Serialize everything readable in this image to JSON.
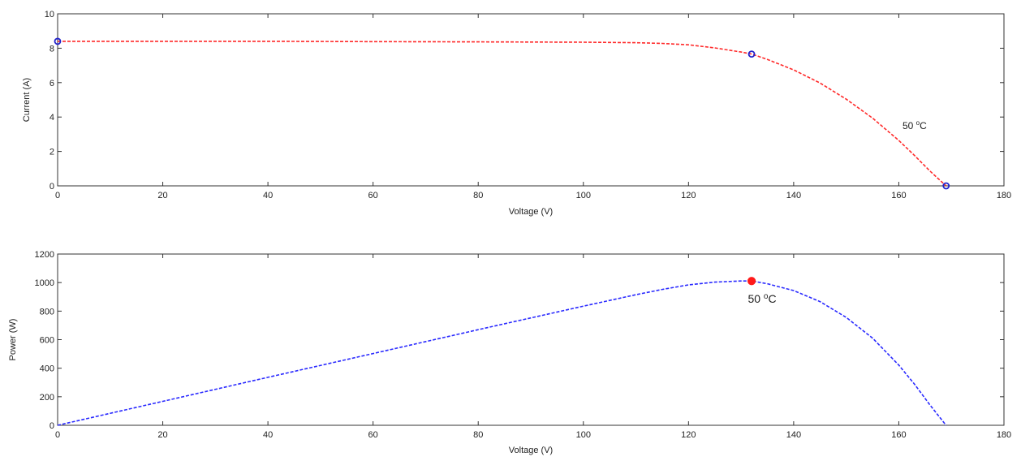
{
  "chart_data": [
    {
      "type": "line",
      "xlabel": "Voltage (V)",
      "ylabel": "Current (A)",
      "xlim": [
        0,
        180
      ],
      "ylim": [
        0,
        10
      ],
      "xticks": [
        "0",
        "20",
        "40",
        "60",
        "80",
        "100",
        "120",
        "140",
        "160",
        "180"
      ],
      "yticks": [
        "0",
        "2",
        "4",
        "6",
        "8",
        "10"
      ],
      "grid": false,
      "line_color": "#ff2a2a",
      "marker_color": "#2222cc",
      "series": [
        {
          "x": [
            0,
            20,
            40,
            60,
            80,
            100,
            110,
            115,
            120,
            125,
            130,
            132,
            135,
            140,
            145,
            150,
            155,
            160,
            163,
            166,
            169
          ],
          "y": [
            8.4,
            8.4,
            8.4,
            8.38,
            8.37,
            8.35,
            8.32,
            8.28,
            8.2,
            8.02,
            7.78,
            7.66,
            7.35,
            6.74,
            5.98,
            5.04,
            3.94,
            2.64,
            1.76,
            0.84,
            0
          ]
        }
      ],
      "markers": [
        {
          "x": 0,
          "y": 8.4
        },
        {
          "x": 132,
          "y": 7.66
        },
        {
          "x": 169,
          "y": 0
        }
      ],
      "annotation": {
        "text": "50 ",
        "sup": "o",
        "suffix": "C",
        "x": 163,
        "y": 3.3
      }
    },
    {
      "type": "line",
      "xlabel": "Voltage (V)",
      "ylabel": "Power (W)",
      "xlim": [
        0,
        180
      ],
      "ylim": [
        0,
        1200
      ],
      "xticks": [
        "0",
        "20",
        "40",
        "60",
        "80",
        "100",
        "120",
        "140",
        "160",
        "180"
      ],
      "yticks": [
        "0",
        "200",
        "400",
        "600",
        "800",
        "1000",
        "1200"
      ],
      "grid": false,
      "line_color": "#2a2aff",
      "marker_color": "#ff1a1a",
      "series": [
        {
          "x": [
            0,
            20,
            40,
            60,
            80,
            100,
            110,
            115,
            120,
            125,
            130,
            132,
            135,
            140,
            145,
            150,
            155,
            160,
            163,
            166,
            169
          ],
          "y": [
            0,
            168,
            336,
            503,
            670,
            835,
            915,
            952,
            984,
            1003,
            1011,
            1011,
            992,
            944,
            867,
            756,
            611,
            422,
            287,
            139,
            0
          ]
        }
      ],
      "markers": [
        {
          "x": 132,
          "y": 1011
        }
      ],
      "annotation": {
        "text": "50 ",
        "sup": "o",
        "suffix": "C",
        "x": 134,
        "y": 860
      }
    }
  ]
}
